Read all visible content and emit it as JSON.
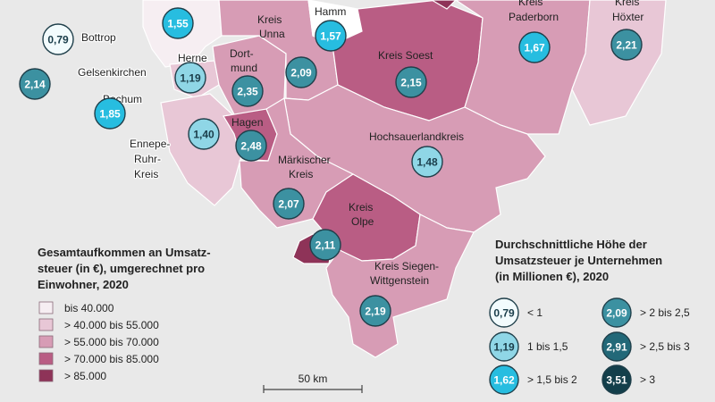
{
  "choropleth_legend": {
    "title_lines": [
      "Gesamtaufkommen an Umsatz-",
      "steuer (in €), umgerechnet pro",
      "Einwohner, 2020"
    ],
    "classes": [
      {
        "label": "bis 40.000",
        "color": "#f6eef2"
      },
      {
        "label": "> 40.000 bis 55.000",
        "color": "#e8c7d6"
      },
      {
        "label": "> 55.000 bis 70.000",
        "color": "#d79cb5"
      },
      {
        "label": "> 70.000 bis 85.000",
        "color": "#b95d84"
      },
      {
        "label": "> 85.000",
        "color": "#8e3358"
      }
    ]
  },
  "bubble_legend": {
    "title_lines": [
      "Durchschnittliche Höhe der",
      "Umsatzsteuer je Unternehmen",
      "(in Millionen €), 2020"
    ],
    "classes": [
      {
        "value": "0,79",
        "label": "< 1",
        "fill": "#f2fbfd",
        "text_color": "#1a3d4a"
      },
      {
        "value": "1,19",
        "label": "1 bis 1,5",
        "fill": "#8fd6e6",
        "text_color": "#1a3d4a"
      },
      {
        "value": "1,62",
        "label": "> 1,5 bis 2",
        "fill": "#27bde0",
        "text_color": "#ffffff"
      },
      {
        "value": "2,09",
        "label": "> 2 bis 2,5",
        "fill": "#3c91a1",
        "text_color": "#ffffff"
      },
      {
        "value": "2,91",
        "label": "> 2,5 bis 3",
        "fill": "#226878",
        "text_color": "#ffffff"
      },
      {
        "value": "3,51",
        "label": "> 3",
        "fill": "#133f4b",
        "text_color": "#ffffff"
      }
    ]
  },
  "scale_bar": {
    "label": "50 km"
  },
  "districts": [
    {
      "name": "Bottrop",
      "value": "0,79",
      "class": 1
    },
    {
      "name": "Gelsenkirchen",
      "value": "2,14",
      "class": 4
    },
    {
      "name": "Bochum",
      "value": "1,85",
      "class": 3
    },
    {
      "name": "Herne",
      "value": "1,19",
      "class": 2
    },
    {
      "name": "Ennepe-Ruhr-Kreis",
      "value": "1,40",
      "class": 2
    },
    {
      "name": "Dortmund",
      "value": "2,35",
      "class": 4
    },
    {
      "name": "Hagen",
      "value": "2,48",
      "class": 4
    },
    {
      "name": "Kreis Unna",
      "value": "2,09",
      "class": 4
    },
    {
      "name": "Hamm",
      "value": "1,57",
      "class": 3
    },
    {
      "name": "Kreis Soest",
      "value": "2,15",
      "class": 4
    },
    {
      "name": "Kreis Paderborn",
      "value": "1,67",
      "class": 3
    },
    {
      "name": "Kreis Höxter",
      "value": "2,21",
      "class": 4
    },
    {
      "name": "Hochsauerlandkreis",
      "value": "1,48",
      "class": 2
    },
    {
      "name": "Märkischer Kreis",
      "value": "2,07",
      "class": 4
    },
    {
      "name": "Kreis Olpe",
      "value": "2,11",
      "class": 4
    },
    {
      "name": "Kreis Siegen-Wittgenstein",
      "value": "2,19",
      "class": 4
    },
    {
      "name": "",
      "value": "1,55",
      "class": 3
    }
  ],
  "labels": {
    "bottrop": "Bottrop",
    "gelsenkirchen": "Gelsenkirchen",
    "bochum": "Bochum",
    "herne": "Herne",
    "ennepe": [
      "Ennepe-",
      "Ruhr-",
      "Kreis"
    ],
    "dortmund": [
      "Dort-",
      "mund"
    ],
    "hagen": "Hagen",
    "unna": [
      "Kreis",
      "Unna"
    ],
    "hamm": "Hamm",
    "soest": "Kreis Soest",
    "paderborn": [
      "Kreis",
      "Paderborn"
    ],
    "hoexter": [
      "Kreis",
      "Höxter"
    ],
    "hochsauerland": "Hochsauerlandkreis",
    "maerkisch": [
      "Märkischer",
      "Kreis"
    ],
    "olpe": [
      "Kreis",
      "Olpe"
    ],
    "siegen": [
      "Kreis Siegen-",
      "Wittgenstein"
    ]
  }
}
